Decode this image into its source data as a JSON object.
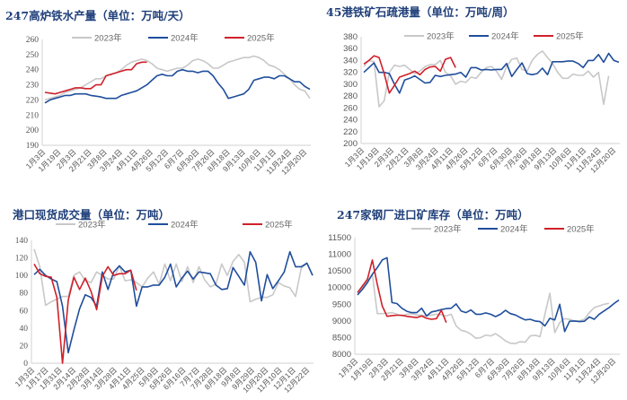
{
  "chart_data": [
    {
      "type": "line",
      "title": "247高炉铁水产量（单位：万吨/天）",
      "ylim": [
        190,
        260
      ],
      "yticks": [
        190,
        200,
        210,
        220,
        230,
        240,
        250,
        260
      ],
      "xticks": [
        "1月3日",
        "1月19日",
        "2月3日",
        "2月21日",
        "3月8日",
        "3月24日",
        "4月11日",
        "4月26日",
        "5月12日",
        "6月7日",
        "6月30日",
        "7月26日",
        "8月18日",
        "9月13日",
        "10月6日",
        "11月1日",
        "11月24日",
        "12月20日"
      ],
      "legend": "top",
      "grid": false,
      "series": [
        {
          "name": "2023年",
          "color": "#c8c8c8",
          "values": [
            220,
            221,
            222,
            223,
            225,
            226,
            227,
            228,
            230,
            232,
            234,
            234,
            236,
            237,
            238,
            240,
            243,
            245,
            246,
            247,
            246,
            244,
            241,
            240,
            239,
            240,
            241,
            241,
            243,
            246,
            247,
            246,
            244,
            241,
            241,
            243,
            245,
            246,
            247,
            248,
            248,
            249,
            248,
            246,
            243,
            242,
            240,
            237,
            234,
            230,
            227,
            226,
            221
          ]
        },
        {
          "name": "2024年",
          "color": "#1f4e9c",
          "values": [
            218,
            220,
            221,
            222,
            223,
            223,
            224,
            224,
            224,
            223,
            222.5,
            222,
            221,
            221,
            221,
            223,
            224,
            225,
            226,
            228,
            230,
            233,
            236,
            237,
            236,
            236,
            239,
            240,
            239,
            239,
            238,
            239,
            239,
            236,
            231,
            227,
            221,
            222,
            223,
            224,
            227,
            233,
            234,
            235,
            235,
            234,
            236,
            236,
            234,
            232,
            232,
            229,
            227
          ]
        },
        {
          "name": "2025年",
          "color": "#d0202a",
          "values": [
            225,
            224.5,
            224,
            225,
            226,
            227,
            228,
            228,
            227.5,
            227.5,
            230,
            230,
            236,
            237,
            238,
            239,
            240,
            240,
            244,
            245,
            245
          ]
        }
      ]
    },
    {
      "type": "line",
      "title": "45港铁矿石疏港量（单位：万吨/周）",
      "ylim": [
        200,
        380
      ],
      "yticks": [
        200,
        220,
        240,
        260,
        280,
        300,
        320,
        340,
        360,
        380
      ],
      "xticks": [
        "1月3日",
        "1月19日",
        "2月3日",
        "2月21日",
        "3月8日",
        "3月24日",
        "4月11日",
        "4月26日",
        "5月12日",
        "6月7日",
        "6月30日",
        "7月26日",
        "8月18日",
        "9月13日",
        "10月6日",
        "11月1日",
        "11月24日",
        "12月20日"
      ],
      "legend": "top",
      "grid": false,
      "series": [
        {
          "name": "2023年",
          "color": "#c8c8c8",
          "values": [
            330,
            340,
            338,
            262,
            272,
            320,
            332,
            330,
            332,
            325,
            318,
            322,
            330,
            333,
            333,
            340,
            320,
            314,
            300,
            305,
            303,
            312,
            310,
            320,
            328,
            330,
            322,
            308,
            330,
            342,
            344,
            325,
            322,
            340,
            350,
            356,
            345,
            335,
            320,
            310,
            310,
            317,
            315,
            315,
            322,
            312,
            320,
            266,
            314
          ]
        },
        {
          "name": "2024年",
          "color": "#1f4e9c",
          "values": [
            320,
            328,
            336,
            320,
            320,
            318,
            300,
            285,
            307,
            310,
            314,
            308,
            302,
            303,
            315,
            313,
            315,
            316,
            317,
            320,
            312,
            328,
            328,
            324,
            325,
            324,
            325,
            325,
            335,
            313,
            325,
            336,
            318,
            316,
            318,
            327,
            316,
            338,
            338,
            338,
            339,
            339,
            335,
            328,
            340,
            340,
            350,
            337,
            352,
            340,
            337
          ]
        },
        {
          "name": "2025年",
          "color": "#d0202a",
          "values": [
            334,
            340,
            348,
            345,
            318,
            285,
            298,
            312,
            315,
            318,
            322,
            316,
            325,
            329,
            330,
            322,
            342,
            345,
            328
          ]
        }
      ]
    },
    {
      "type": "line",
      "title": "港口现货成交量（单位：万吨）",
      "ylim": [
        0,
        140
      ],
      "yticks": [
        0,
        20,
        40,
        60,
        80,
        100,
        120,
        140
      ],
      "xticks": [
        "1月3日",
        "1月17日",
        "1月31日",
        "2月14日",
        "2月28日",
        "3月14日",
        "3月28日",
        "4月11日",
        "4月25日",
        "5月9日",
        "5月26日",
        "6月16日",
        "7月7日",
        "7月28日",
        "8月18日",
        "9月8日",
        "9月29日",
        "10月20日",
        "11月10日",
        "12月1日",
        "12月22日"
      ],
      "legend": "top",
      "grid": false,
      "series": [
        {
          "name": "2023年",
          "color": "#c8c8c8",
          "values": [
            130,
            110,
            66,
            70,
            73,
            76,
            76,
            100,
            104,
            94,
            92,
            104,
            100,
            96,
            96,
            111,
            94,
            95,
            92,
            87,
            97,
            104,
            90,
            113,
            94,
            113,
            93,
            110,
            92,
            110,
            95,
            87,
            90,
            113,
            100,
            116,
            124,
            115,
            70,
            73,
            75,
            75,
            78,
            92,
            88,
            86,
            76,
            108,
            114,
            100
          ]
        },
        {
          "name": "2024年",
          "color": "#1f4e9c",
          "values": [
            101,
            107,
            100,
            96,
            93,
            65,
            12,
            38,
            62,
            78,
            75,
            65,
            104,
            84,
            104,
            111,
            104,
            106,
            65,
            87,
            87,
            89,
            89,
            98,
            113,
            87,
            97,
            105,
            96,
            104,
            103,
            102,
            89,
            84,
            85,
            109,
            99,
            89,
            127,
            115,
            71,
            101,
            85,
            94,
            104,
            127,
            110,
            110,
            114,
            100
          ]
        },
        {
          "name": "2025年",
          "color": "#d0202a",
          "values": [
            113,
            102,
            99,
            98,
            75,
            0,
            72,
            98,
            84,
            97,
            82,
            61,
            99,
            110,
            100,
            102,
            102,
            106,
            83
          ]
        }
      ]
    },
    {
      "type": "line",
      "title": "247家钢厂进口矿库存（单位：万吨）",
      "ylim": [
        8000,
        11500
      ],
      "yticks": [
        8000,
        8500,
        9000,
        9500,
        10000,
        10500,
        11000,
        11500
      ],
      "xticks": [
        "1月3日",
        "1月19日",
        "2月3日",
        "2月21日",
        "3月8日",
        "3月24日",
        "4月11日",
        "4月26日",
        "5月12日",
        "6月7日",
        "6月30日",
        "7月26日",
        "8月18日",
        "9月13日",
        "10月6日",
        "11月1日",
        "11月24日",
        "12月20日"
      ],
      "legend": "top",
      "grid": false,
      "series": [
        {
          "name": "2023年",
          "color": "#c8c8c8",
          "values": [
            9850,
            10000,
            10200,
            10400,
            9220,
            9220,
            9230,
            9250,
            9200,
            9150,
            9200,
            9220,
            9180,
            9170,
            9150,
            9180,
            9200,
            9190,
            9150,
            9200,
            8850,
            8720,
            8680,
            8600,
            8480,
            8500,
            8580,
            8550,
            8620,
            8520,
            8400,
            8330,
            8320,
            8380,
            8360,
            8550,
            8570,
            8530,
            9200,
            9830,
            8650,
            8950,
            9070,
            9050,
            9000,
            9000,
            9050,
            9250,
            9400,
            9450,
            9500,
            9530
          ]
        },
        {
          "name": "2024年",
          "color": "#1f4e9c",
          "values": [
            9780,
            9950,
            10150,
            10400,
            10600,
            10830,
            10900,
            9550,
            9520,
            9380,
            9290,
            9250,
            9250,
            9380,
            9150,
            9270,
            9300,
            9340,
            9370,
            9380,
            9510,
            9300,
            9250,
            9330,
            9200,
            9200,
            9240,
            9200,
            9130,
            9200,
            9320,
            9220,
            9180,
            9100,
            9030,
            9050,
            9000,
            8980,
            8850,
            9080,
            9030,
            9500,
            8680,
            8990,
            9000,
            8980,
            8990,
            9120,
            9050,
            9200,
            9300,
            9400,
            9520,
            9630
          ]
        },
        {
          "name": "2025年",
          "color": "#d0202a",
          "values": [
            9850,
            10050,
            10250,
            10830,
            10100,
            9450,
            9140,
            9160,
            9170,
            9170,
            9140,
            9120,
            9100,
            9150,
            9080,
            9050,
            9070,
            9320,
            8950
          ]
        }
      ]
    }
  ]
}
